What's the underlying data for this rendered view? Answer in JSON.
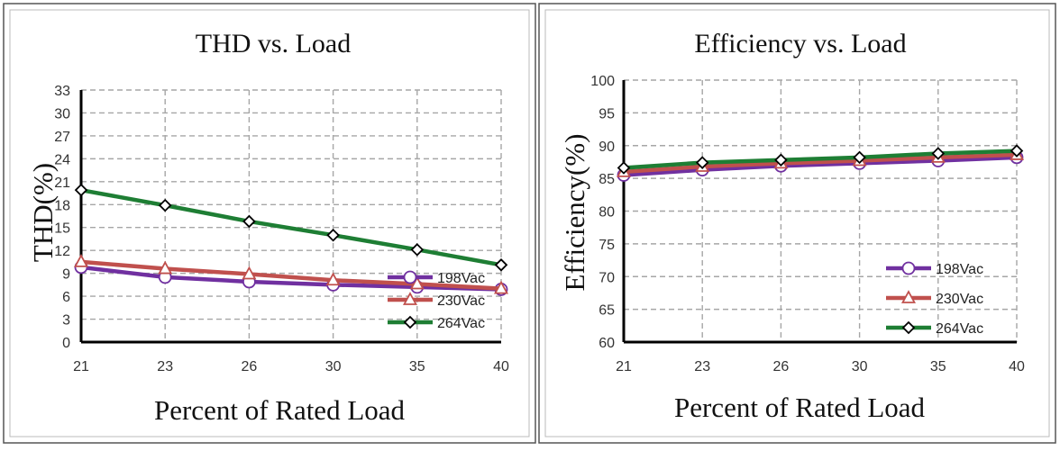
{
  "chart_data": [
    {
      "type": "line",
      "title": "THD vs. Load",
      "xlabel": "Percent of Rated Load",
      "ylabel": "THD(%)",
      "categories": [
        "21",
        "23",
        "26",
        "30",
        "35",
        "40"
      ],
      "ylim": [
        0,
        33
      ],
      "yticks": [
        0,
        3,
        6,
        9,
        12,
        15,
        18,
        21,
        24,
        27,
        30,
        33
      ],
      "grid": true,
      "legend_position": "bottom-right",
      "series": [
        {
          "name": "198Vac",
          "values": [
            9.8,
            8.5,
            7.9,
            7.5,
            7.2,
            6.9
          ],
          "color": "#7030a0",
          "marker": "circle"
        },
        {
          "name": "230Vac",
          "values": [
            10.5,
            9.6,
            8.9,
            8.1,
            7.6,
            7.0
          ],
          "color": "#c0504d",
          "marker": "triangle"
        },
        {
          "name": "264Vac",
          "values": [
            19.9,
            17.9,
            15.8,
            14.0,
            12.1,
            10.1
          ],
          "color": "#1e7e34",
          "marker": "diamond"
        }
      ]
    },
    {
      "type": "line",
      "title": "Efficiency vs. Load",
      "xlabel": "Percent of Rated Load",
      "ylabel": "Efficiency(%)",
      "categories": [
        "21",
        "23",
        "26",
        "30",
        "35",
        "40"
      ],
      "ylim": [
        60,
        100
      ],
      "yticks": [
        60,
        65,
        70,
        75,
        80,
        85,
        90,
        95,
        100
      ],
      "grid": true,
      "legend_position": "bottom-right",
      "series": [
        {
          "name": "198Vac",
          "values": [
            85.5,
            86.3,
            86.9,
            87.3,
            87.7,
            88.2
          ],
          "color": "#7030a0",
          "marker": "circle"
        },
        {
          "name": "230Vac",
          "values": [
            86.0,
            86.8,
            87.3,
            87.7,
            88.2,
            88.6
          ],
          "color": "#c0504d",
          "marker": "triangle"
        },
        {
          "name": "264Vac",
          "values": [
            86.6,
            87.4,
            87.8,
            88.2,
            88.8,
            89.2
          ],
          "color": "#1e7e34",
          "marker": "diamond"
        }
      ]
    }
  ]
}
